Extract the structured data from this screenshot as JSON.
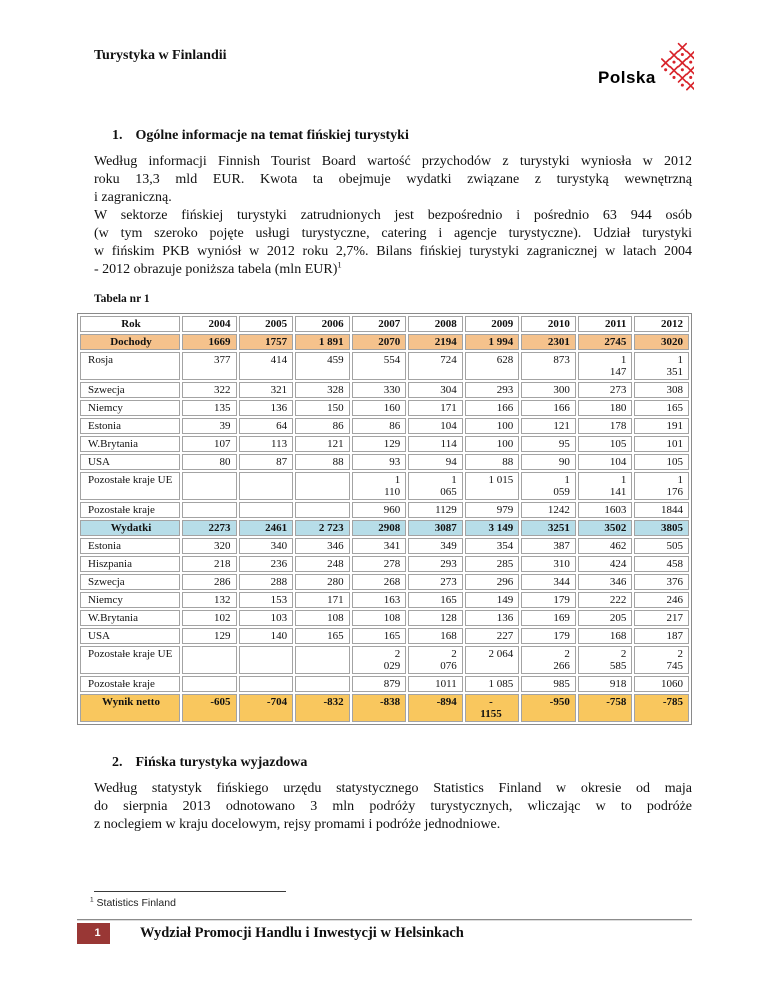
{
  "header": {
    "title": "Turystyka w Finlandii",
    "logo_text": "Polska"
  },
  "section1": {
    "number": "1.",
    "heading": "Ogólne informacje na temat fińskiej turystyki",
    "lines": [
      {
        "text": "Według informacji Finnish Tourist Board wartość przychodów z turystyki wyniosła w 2012",
        "justify": true
      },
      {
        "text": "roku 13,3 mld EUR. Kwota ta obejmuje wydatki związane z turystyką wewnętrzną",
        "justify": true
      },
      {
        "text": "i zagraniczną.",
        "justify": false
      },
      {
        "text": "W sektorze fińskiej turystyki zatrudnionych jest bezpośrednio i pośrednio 63 944 osób",
        "justify": true
      },
      {
        "text": "(w tym  szeroko pojęte usługi turystyczne, catering i agencje turystyczne). Udział turystyki",
        "justify": true
      },
      {
        "text": "w fińskim PKB wyniósł w 2012 roku 2,7%. Bilans fińskiej turystyki zagranicznej w latach 2004",
        "justify": true
      },
      {
        "text": "- 2012 obrazuje poniższa tabela (mln EUR)",
        "justify": false,
        "sup": "1"
      }
    ]
  },
  "table": {
    "caption": "Tabela nr 1",
    "rows": [
      {
        "type": "header",
        "cells": [
          "Rok",
          "2004",
          "2005",
          "2006",
          "2007",
          "2008",
          "2009",
          "2010",
          "2011",
          "2012"
        ]
      },
      {
        "type": "income",
        "cells": [
          "Dochody",
          "1669",
          "1757",
          "1 891",
          "2070",
          "2194",
          "1 994",
          "2301",
          "2745",
          "3020"
        ]
      },
      {
        "type": "data",
        "cells": [
          "Rosja",
          "377",
          "414",
          "459",
          "554",
          "724",
          "628",
          "873",
          "1\n147",
          "1\n351"
        ]
      },
      {
        "type": "data",
        "cells": [
          "Szwecja",
          "322",
          "321",
          "328",
          "330",
          "304",
          "293",
          "300",
          "273",
          "308"
        ]
      },
      {
        "type": "data",
        "cells": [
          "Niemcy",
          "135",
          "136",
          "150",
          "160",
          "171",
          "166",
          "166",
          "180",
          "165"
        ]
      },
      {
        "type": "data",
        "cells": [
          "Estonia",
          "39",
          "64",
          "86",
          "86",
          "104",
          "100",
          "121",
          "178",
          "191"
        ]
      },
      {
        "type": "data",
        "cells": [
          "W.Brytania",
          "107",
          "113",
          "121",
          "129",
          "114",
          "100",
          "95",
          "105",
          "101"
        ]
      },
      {
        "type": "data",
        "cells": [
          "USA",
          "80",
          "87",
          "88",
          "93",
          "94",
          "88",
          "90",
          "104",
          "105"
        ]
      },
      {
        "type": "data",
        "cells": [
          "Pozostałe kraje UE",
          "",
          "",
          "",
          "1\n110",
          "1\n065",
          "1 015",
          "1\n059",
          "1\n141",
          "1\n176"
        ]
      },
      {
        "type": "data",
        "cells": [
          "Pozostałe kraje",
          "",
          "",
          "",
          "960",
          "1129",
          "979",
          "1242",
          "1603",
          "1844"
        ]
      },
      {
        "type": "expense",
        "cells": [
          "Wydatki",
          "2273",
          "2461",
          "2 723",
          "2908",
          "3087",
          "3 149",
          "3251",
          "3502",
          "3805"
        ]
      },
      {
        "type": "data",
        "cells": [
          "Estonia",
          "320",
          "340",
          "346",
          "341",
          "349",
          "354",
          "387",
          "462",
          "505"
        ]
      },
      {
        "type": "data",
        "cells": [
          "Hiszpania",
          "218",
          "236",
          "248",
          "278",
          "293",
          "285",
          "310",
          "424",
          "458"
        ]
      },
      {
        "type": "data",
        "cells": [
          "Szwecja",
          "286",
          "288",
          "280",
          "268",
          "273",
          "296",
          "344",
          "346",
          "376"
        ]
      },
      {
        "type": "data",
        "cells": [
          "Niemcy",
          "132",
          "153",
          "171",
          "163",
          "165",
          "149",
          "179",
          "222",
          "246"
        ]
      },
      {
        "type": "data",
        "cells": [
          "W.Brytania",
          "102",
          "103",
          "108",
          "108",
          "128",
          "136",
          "169",
          "205",
          "217"
        ]
      },
      {
        "type": "data",
        "cells": [
          "USA",
          "129",
          "140",
          "165",
          "165",
          "168",
          "227",
          "179",
          "168",
          "187"
        ]
      },
      {
        "type": "data",
        "cells": [
          "Pozostałe kraje UE",
          "",
          "",
          "",
          "2\n029",
          "2\n076",
          "2 064",
          "2\n266",
          "2\n585",
          "2\n745"
        ]
      },
      {
        "type": "data",
        "cells": [
          "Pozostałe kraje",
          "",
          "",
          "",
          "879",
          "1011",
          "1 085",
          "985",
          "918",
          "1060"
        ]
      },
      {
        "type": "net",
        "cells": [
          "Wynik netto",
          "-605",
          "-704",
          "-832",
          "-838",
          "-894",
          {
            "text": "-\n1155",
            "align": "center"
          },
          "-950",
          "-758",
          "-785"
        ]
      }
    ]
  },
  "section2": {
    "number": "2.",
    "heading": "Fińska turystyka wyjazdowa",
    "lines": [
      {
        "text": "Według statystyk fińskiego urzędu statystycznego Statistics Finland w okresie od maja",
        "justify": true
      },
      {
        "text": "do sierpnia 2013 odnotowano 3 mln podróży turystycznych, wliczając w to podróże",
        "justify": true
      },
      {
        "text": "z noclegiem w kraju docelowym, rejsy promami i podróże jednodniowe.",
        "justify": false
      }
    ]
  },
  "footnote": {
    "sup": "1",
    "text": "Statistics Finland"
  },
  "footer": {
    "page_number": "1",
    "text": "Wydział Promocji Handlu i Inwestycji w Helsinkach"
  },
  "colors": {
    "income_row": "#F5C28C",
    "expense_row": "#B7DDE8",
    "net_row": "#F9C75E",
    "logo_red": "#D8232A",
    "footer_box": "#993735"
  }
}
